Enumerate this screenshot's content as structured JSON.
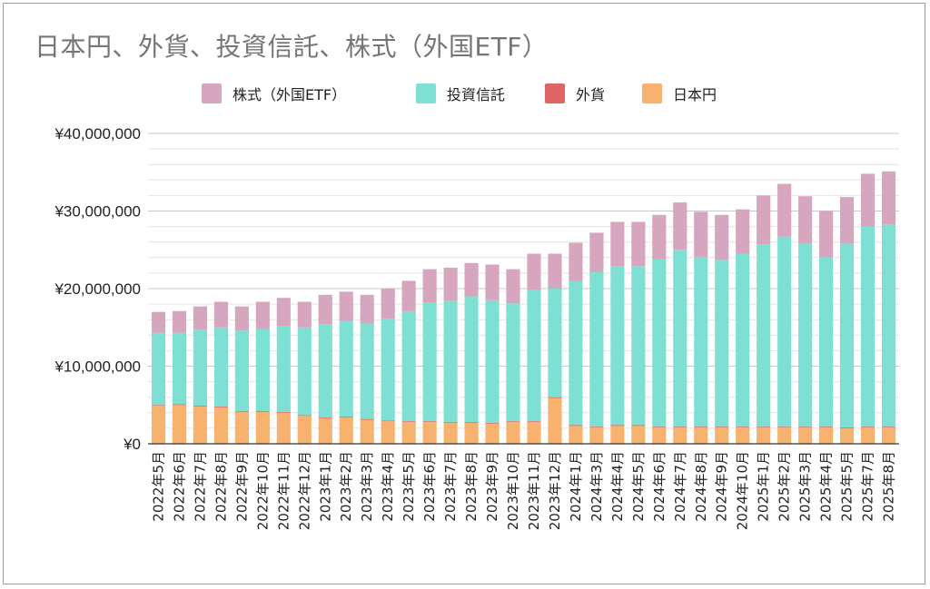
{
  "chart_data": {
    "type": "bar",
    "stacked": true,
    "title": "日本円、外貨、投資信託、株式（外国ETF）",
    "legend_position": "top",
    "ylim": [
      0,
      40000000
    ],
    "y_ticks": [
      0,
      10000000,
      20000000,
      30000000,
      40000000
    ],
    "y_tick_labels": [
      "¥0",
      "¥10,000,000",
      "¥20,000,000",
      "¥30,000,000",
      "¥40,000,000"
    ],
    "grid": true,
    "categories": [
      "2022年5月",
      "2022年6月",
      "2022年7月",
      "2022年8月",
      "2022年9月",
      "2022年10月",
      "2022年11月",
      "2022年12月",
      "2023年1月",
      "2023年2月",
      "2023年3月",
      "2023年4月",
      "2023年5月",
      "2023年6月",
      "2023年7月",
      "2023年8月",
      "2023年9月",
      "2023年10月",
      "2023年11月",
      "2023年12月",
      "2024年1月",
      "2024年3月",
      "2024年4月",
      "2024年5月",
      "2024年6月",
      "2024年7月",
      "2024年8月",
      "2024年9月",
      "2024年10月",
      "2025年1月",
      "2025年2月",
      "2025年3月",
      "2025年4月",
      "2025年5月",
      "2025年7月",
      "2025年8月"
    ],
    "series": [
      {
        "name": "日本円",
        "color": "#f7b26f",
        "values": [
          4900000,
          5000000,
          4800000,
          4700000,
          4100000,
          4100000,
          4000000,
          3600000,
          3300000,
          3400000,
          3100000,
          2900000,
          2800000,
          2800000,
          2700000,
          2700000,
          2600000,
          2800000,
          2800000,
          5900000,
          2300000,
          2100000,
          2300000,
          2300000,
          2100000,
          2100000,
          2100000,
          2100000,
          2100000,
          2100000,
          2100000,
          2100000,
          2100000,
          2000000,
          2100000,
          2100000
        ]
      },
      {
        "name": "外貨",
        "color": "#e06666",
        "values": [
          100000,
          100000,
          100000,
          100000,
          100000,
          100000,
          100000,
          100000,
          100000,
          100000,
          100000,
          100000,
          100000,
          100000,
          100000,
          100000,
          100000,
          100000,
          100000,
          100000,
          100000,
          100000,
          100000,
          100000,
          100000,
          100000,
          100000,
          100000,
          100000,
          100000,
          100000,
          100000,
          100000,
          100000,
          100000,
          100000
        ]
      },
      {
        "name": "投資信託",
        "color": "#7ee0d3",
        "values": [
          9300000,
          9200000,
          9800000,
          10200000,
          10400000,
          10600000,
          11100000,
          11300000,
          12000000,
          12300000,
          12300000,
          13100000,
          14200000,
          15300000,
          15600000,
          16200000,
          15800000,
          15200000,
          16900000,
          14000000,
          18600000,
          19900000,
          20500000,
          20500000,
          21600000,
          22800000,
          21900000,
          21500000,
          22300000,
          23500000,
          24500000,
          23600000,
          21800000,
          23700000,
          25800000,
          26100000
        ]
      },
      {
        "name": "株式（外国ETF）",
        "color": "#d5a6bd",
        "values": [
          2700000,
          2800000,
          3000000,
          3300000,
          3100000,
          3500000,
          3600000,
          3300000,
          3800000,
          3800000,
          3700000,
          3900000,
          3900000,
          4300000,
          4300000,
          4300000,
          4600000,
          4400000,
          4700000,
          4500000,
          4900000,
          5100000,
          5700000,
          5700000,
          5700000,
          6100000,
          5800000,
          5800000,
          5700000,
          6300000,
          6800000,
          6100000,
          6000000,
          6000000,
          6800000,
          6800000
        ]
      }
    ],
    "legend_order": [
      "株式（外国ETF）",
      "投資信託",
      "外貨",
      "日本円"
    ]
  }
}
